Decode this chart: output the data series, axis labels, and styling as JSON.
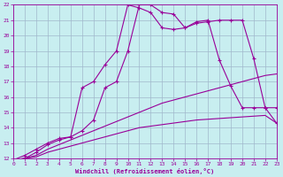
{
  "xlabel": "Windchill (Refroidissement éolien,°C)",
  "bg_color": "#c8eef0",
  "grid_color": "#a0b8cc",
  "line_color": "#990099",
  "xmin": 0,
  "xmax": 23,
  "ymin": 12,
  "ymax": 22,
  "line1_x": [
    0,
    1,
    2,
    3,
    4,
    5,
    6,
    7,
    8,
    9,
    10,
    11,
    12,
    13,
    14,
    15,
    16,
    17,
    18,
    19,
    20,
    21,
    22,
    23
  ],
  "line1_y": [
    11.9,
    12.0,
    12.1,
    12.4,
    12.6,
    12.8,
    13.0,
    13.2,
    13.4,
    13.6,
    13.8,
    14.0,
    14.1,
    14.2,
    14.3,
    14.4,
    14.5,
    14.55,
    14.6,
    14.65,
    14.7,
    14.75,
    14.8,
    14.3
  ],
  "line2_x": [
    0,
    1,
    2,
    3,
    4,
    5,
    6,
    7,
    8,
    9,
    10,
    11,
    12,
    13,
    14,
    15,
    16,
    17,
    18,
    19,
    20,
    21,
    22,
    23
  ],
  "line2_y": [
    11.9,
    12.0,
    12.2,
    12.6,
    12.9,
    13.2,
    13.5,
    13.8,
    14.1,
    14.4,
    14.7,
    15.0,
    15.3,
    15.6,
    15.8,
    16.0,
    16.2,
    16.4,
    16.6,
    16.8,
    17.0,
    17.2,
    17.4,
    17.5
  ],
  "line3_x": [
    0,
    1,
    2,
    3,
    4,
    5,
    6,
    7,
    8,
    9,
    10,
    11,
    12,
    13,
    14,
    15,
    16,
    17,
    18,
    19,
    20,
    21,
    22,
    23
  ],
  "line3_y": [
    11.9,
    12.0,
    12.4,
    12.9,
    13.2,
    13.4,
    13.8,
    14.5,
    16.6,
    17.0,
    19.0,
    22.0,
    22.0,
    21.5,
    21.4,
    20.5,
    20.9,
    21.0,
    18.4,
    16.7,
    15.3,
    15.3,
    15.3,
    14.3
  ],
  "line4_x": [
    0,
    1,
    2,
    3,
    4,
    5,
    6,
    7,
    8,
    9,
    10,
    11,
    12,
    13,
    14,
    15,
    16,
    17,
    18,
    19,
    20,
    21,
    22,
    23
  ],
  "line4_y": [
    11.9,
    12.2,
    12.6,
    13.0,
    13.3,
    13.4,
    16.6,
    17.0,
    18.1,
    19.0,
    22.0,
    21.8,
    21.5,
    20.5,
    20.4,
    20.5,
    20.8,
    20.9,
    21.0,
    21.0,
    21.0,
    18.5,
    15.3,
    15.3
  ]
}
